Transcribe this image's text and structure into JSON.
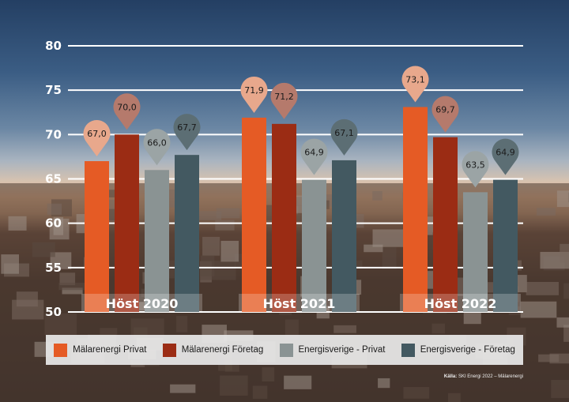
{
  "chart_data": {
    "type": "bar",
    "categories": [
      "Höst 2020",
      "Höst 2021",
      "Höst 2022"
    ],
    "series": [
      {
        "name": "Mälarenergi Privat",
        "color": "#e55b25",
        "pin_color": "#e8a88c",
        "values": [
          67.0,
          71.9,
          73.1
        ],
        "labels": [
          "67,0",
          "71,9",
          "73,1"
        ]
      },
      {
        "name": "Mälarenergi Företag",
        "color": "#9b2c14",
        "pin_color": "#b57a6c",
        "values": [
          70.0,
          71.2,
          69.7
        ],
        "labels": [
          "70,0",
          "71,2",
          "69,7"
        ]
      },
      {
        "name": "Energisverige - Privat",
        "color": "#8a9393",
        "pin_color": "#9ba4a5",
        "values": [
          66.0,
          64.9,
          63.5
        ],
        "labels": [
          "66,0",
          "64,9",
          "63,5"
        ]
      },
      {
        "name": "Energisverige - Företag",
        "color": "#435961",
        "pin_color": "#5c6e74",
        "values": [
          67.7,
          67.1,
          64.9
        ],
        "labels": [
          "67,7",
          "67,1",
          "64,9"
        ]
      }
    ],
    "yticks": [
      "50",
      "55",
      "60",
      "65",
      "70",
      "75",
      "80"
    ],
    "ylim": [
      50,
      80
    ],
    "grid": true,
    "legend_position": "bottom"
  },
  "source": {
    "label": "Källa:",
    "text": "SKI Energi 2022 – Mälarenergi"
  }
}
